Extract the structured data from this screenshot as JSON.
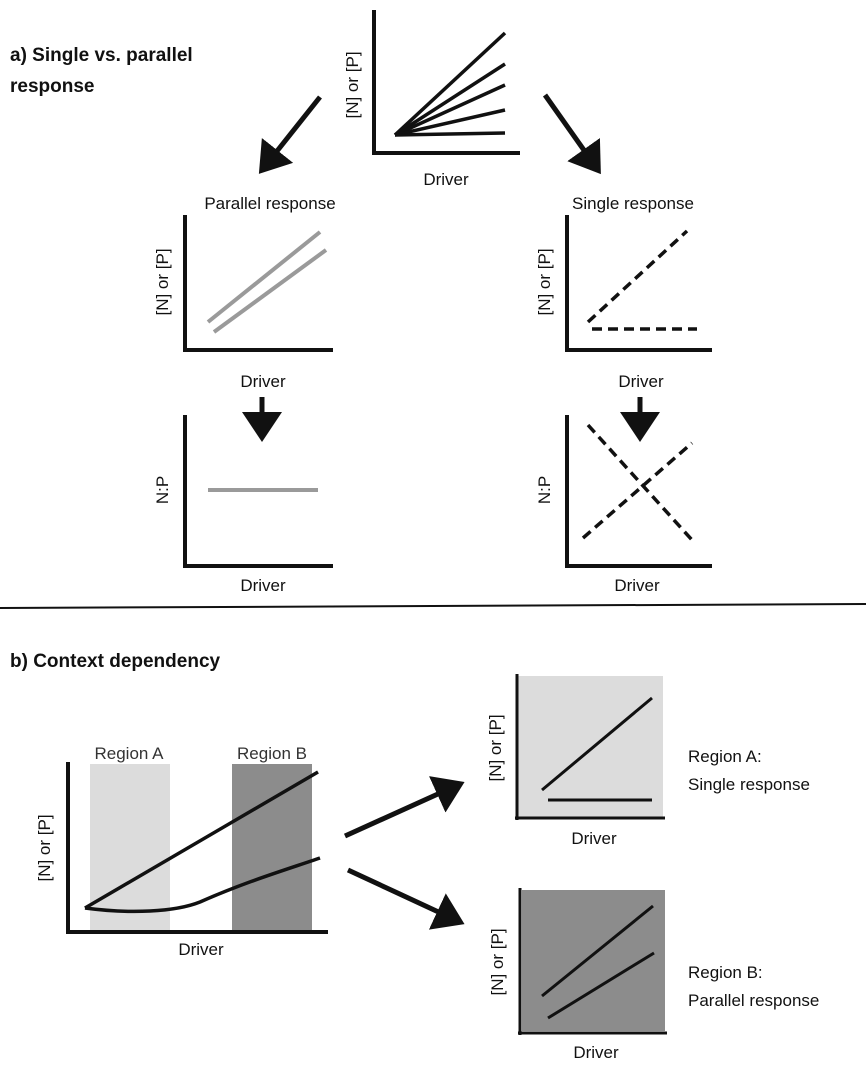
{
  "colors": {
    "axis": "#111111",
    "line_black": "#111111",
    "line_gray": "#9a9a9a",
    "region_a_fill": "#dcdcdc",
    "region_b_fill": "#8c8c8c",
    "panel_light_fill": "#dcdcdc",
    "panel_dark_fill": "#8c8c8c"
  },
  "section_a": {
    "heading_line1": "a) Single vs. parallel",
    "heading_line2": "response",
    "top_plot": {
      "ylabel": "[N] or [P]",
      "xlabel": "Driver"
    },
    "parallel": {
      "title": "Parallel response",
      "upper_plot": {
        "ylabel": "[N] or [P]",
        "xlabel": "Driver"
      },
      "lower_plot": {
        "ylabel": "N:P",
        "xlabel": "Driver"
      }
    },
    "single": {
      "title": "Single response",
      "upper_plot": {
        "ylabel": "[N] or [P]",
        "xlabel": "Driver"
      },
      "lower_plot": {
        "ylabel": "N:P",
        "xlabel": "Driver"
      }
    }
  },
  "section_b": {
    "heading": "b) Context dependency",
    "main_plot": {
      "ylabel": "[N] or [P]",
      "xlabel": "Driver",
      "region_a_label": "Region A",
      "region_b_label": "Region B"
    },
    "region_a_panel": {
      "ylabel": "[N] or [P]",
      "xlabel": "Driver",
      "note_line1": "Region A:",
      "note_line2": "Single response"
    },
    "region_b_panel": {
      "ylabel": "[N] or [P]",
      "xlabel": "Driver",
      "note_line1": "Region B:",
      "note_line2": "Parallel response"
    }
  }
}
